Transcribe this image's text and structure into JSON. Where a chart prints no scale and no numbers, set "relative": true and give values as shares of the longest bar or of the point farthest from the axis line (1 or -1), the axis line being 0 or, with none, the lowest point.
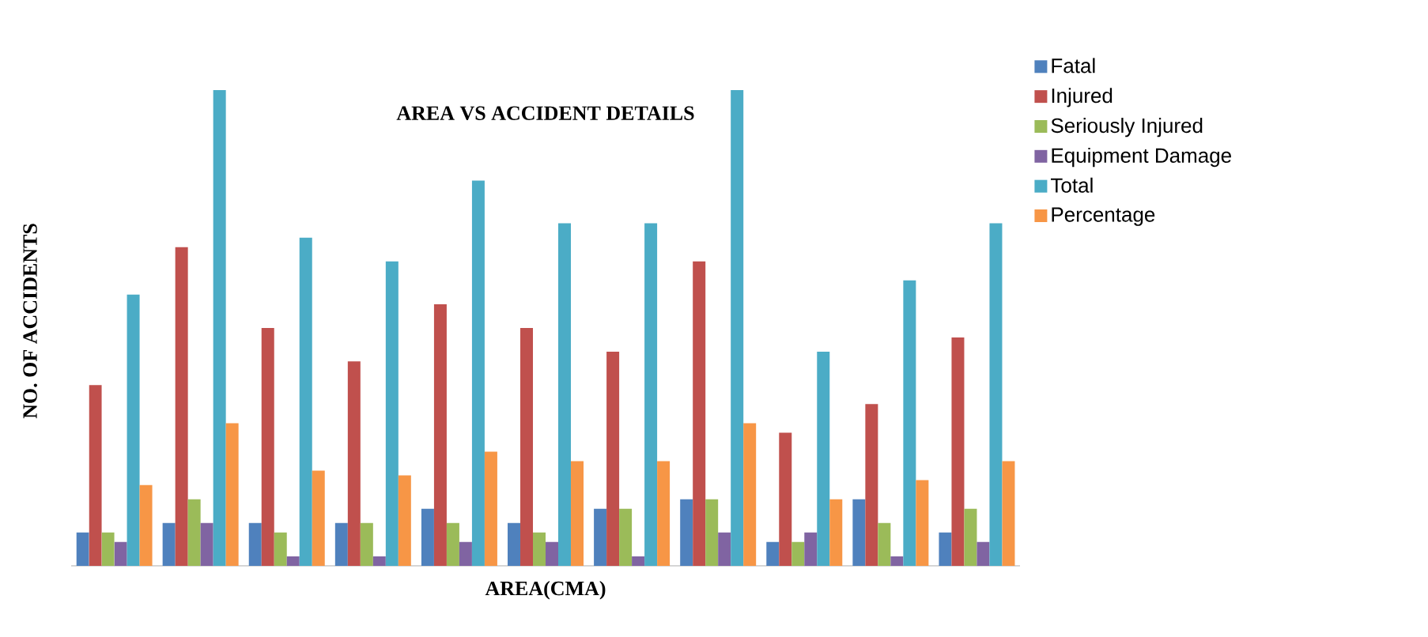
{
  "chart_data": {
    "type": "bar",
    "title": "AREA VS ACCIDENT DETAILS",
    "xlabel": "AREA(CMA)",
    "ylabel": "NO. OF ACCIDENTS",
    "relative": true,
    "legend": "top right",
    "categories": [
      null,
      null,
      null,
      null,
      null,
      null,
      null,
      null,
      null,
      null,
      null
    ],
    "series": [
      {
        "name": "Fatal",
        "color": "#4f81bd",
        "values": [
          0.07,
          0.09,
          0.09,
          0.09,
          0.12,
          0.09,
          0.12,
          0.14,
          0.05,
          0.14,
          0.07
        ]
      },
      {
        "name": "Injured",
        "color": "#c0504d",
        "values": [
          0.38,
          0.67,
          0.5,
          0.43,
          0.55,
          0.5,
          0.45,
          0.64,
          0.28,
          0.34,
          0.48
        ]
      },
      {
        "name": "Seriously Injured",
        "color": "#9bbb59",
        "values": [
          0.07,
          0.14,
          0.07,
          0.09,
          0.09,
          0.07,
          0.12,
          0.14,
          0.05,
          0.09,
          0.12
        ]
      },
      {
        "name": "Equipment Damage",
        "color": "#8064a2",
        "values": [
          0.05,
          0.09,
          0.02,
          0.02,
          0.05,
          0.05,
          0.02,
          0.07,
          0.07,
          0.02,
          0.05
        ]
      },
      {
        "name": "Total",
        "color": "#4bacc6",
        "values": [
          0.57,
          1,
          0.69,
          0.64,
          0.81,
          0.72,
          0.72,
          1,
          0.45,
          0.6,
          0.72
        ]
      },
      {
        "name": "Percentage",
        "color": "#f79646",
        "values": [
          0.17,
          0.3,
          0.2,
          0.19,
          0.24,
          0.22,
          0.22,
          0.3,
          0.14,
          0.18,
          0.22
        ]
      }
    ]
  }
}
